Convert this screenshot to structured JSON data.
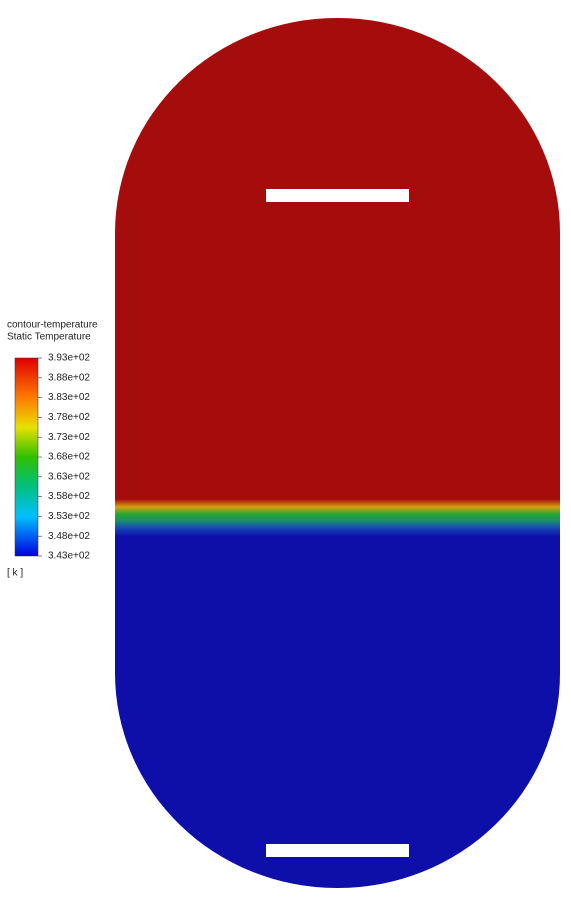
{
  "legend": {
    "title": "contour-temperature",
    "subtitle": "Static Temperature",
    "ticks": [
      "3.93e+02",
      "3.88e+02",
      "3.83e+02",
      "3.78e+02",
      "3.73e+02",
      "3.68e+02",
      "3.63e+02",
      "3.58e+02",
      "3.53e+02",
      "3.48e+02",
      "3.43e+02"
    ],
    "unit": "[ k ]"
  }
}
